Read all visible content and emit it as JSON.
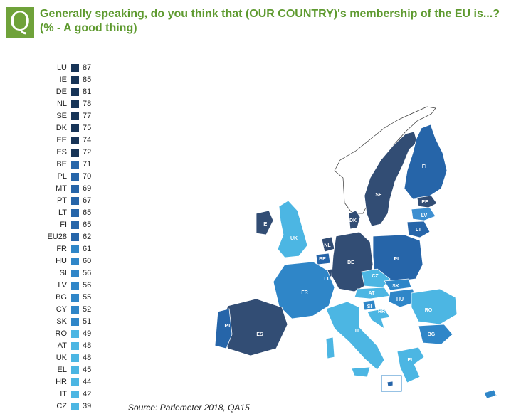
{
  "header": {
    "q_letter": "Q",
    "title_line1": "Generally speaking, do you think that (OUR COUNTRY)'s membership of the EU is...?",
    "title_line2": "(% -  A  good thing)"
  },
  "legend": [
    {
      "code": "LU",
      "value": 87,
      "color": "#173457"
    },
    {
      "code": "IE",
      "value": 85,
      "color": "#173457"
    },
    {
      "code": "DE",
      "value": 81,
      "color": "#173457"
    },
    {
      "code": "NL",
      "value": 78,
      "color": "#173457"
    },
    {
      "code": "SE",
      "value": 77,
      "color": "#173457"
    },
    {
      "code": "DK",
      "value": 75,
      "color": "#173457"
    },
    {
      "code": "EE",
      "value": 74,
      "color": "#173457"
    },
    {
      "code": "ES",
      "value": 72,
      "color": "#173457"
    },
    {
      "code": "BE",
      "value": 71,
      "color": "#2665a9"
    },
    {
      "code": "PL",
      "value": 70,
      "color": "#2665a9"
    },
    {
      "code": "MT",
      "value": 69,
      "color": "#2665a9"
    },
    {
      "code": "PT",
      "value": 67,
      "color": "#2665a9"
    },
    {
      "code": "LT",
      "value": 65,
      "color": "#2665a9"
    },
    {
      "code": "FI",
      "value": 65,
      "color": "#2665a9"
    },
    {
      "code": "EU28",
      "value": 62,
      "color": "#2665a9"
    },
    {
      "code": "FR",
      "value": 61,
      "color": "#2f86c8"
    },
    {
      "code": "HU",
      "value": 60,
      "color": "#2f86c8"
    },
    {
      "code": "SI",
      "value": 56,
      "color": "#2f86c8"
    },
    {
      "code": "LV",
      "value": 56,
      "color": "#2f86c8"
    },
    {
      "code": "BG",
      "value": 55,
      "color": "#2f86c8"
    },
    {
      "code": "CY",
      "value": 52,
      "color": "#2f86c8"
    },
    {
      "code": "SK",
      "value": 51,
      "color": "#2f86c8"
    },
    {
      "code": "RO",
      "value": 49,
      "color": "#4cb6e3"
    },
    {
      "code": "AT",
      "value": 48,
      "color": "#4cb6e3"
    },
    {
      "code": "UK",
      "value": 48,
      "color": "#4cb6e3"
    },
    {
      "code": "EL",
      "value": 45,
      "color": "#4cb6e3"
    },
    {
      "code": "HR",
      "value": 44,
      "color": "#4cb6e3"
    },
    {
      "code": "IT",
      "value": 42,
      "color": "#4cb6e3"
    },
    {
      "code": "CZ",
      "value": 39,
      "color": "#4cb6e3"
    }
  ],
  "map_labels": [
    "FI",
    "SE",
    "EE",
    "LV",
    "LT",
    "DK",
    "IE",
    "UK",
    "NL",
    "BE",
    "LU",
    "DE",
    "PL",
    "CZ",
    "SK",
    "AT",
    "HU",
    "SI",
    "HR",
    "RO",
    "FR",
    "PT",
    "ES",
    "IT",
    "BG",
    "EL",
    "MT",
    "CY"
  ],
  "source": "Source: Parlemeter 2018, QA15"
}
